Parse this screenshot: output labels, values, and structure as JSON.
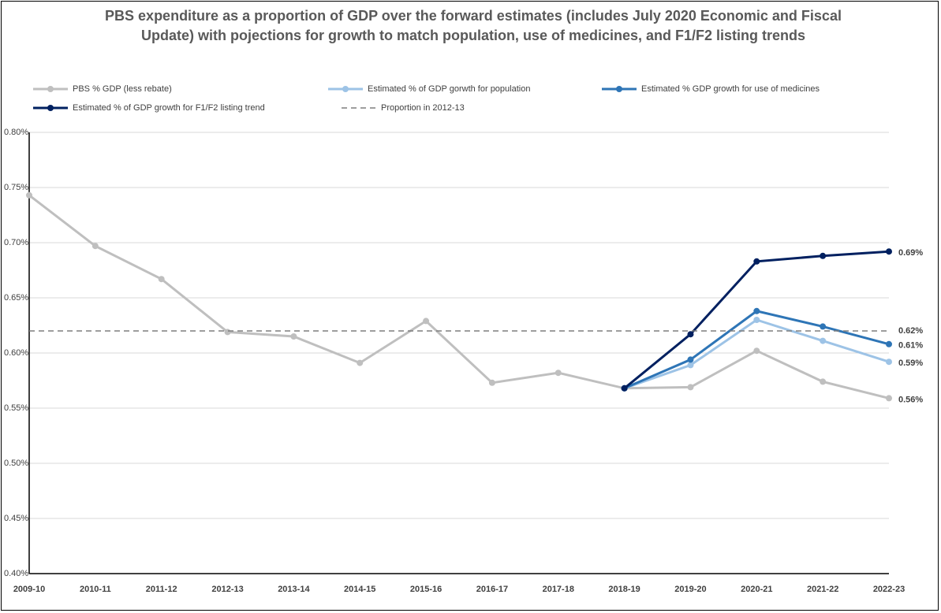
{
  "chart_data": {
    "type": "line",
    "title": "PBS expenditure as a proportion of GDP over the forward estimates (includes July 2020 Economic and Fiscal Update) with pojections for growth to match population, use of medicines, and F1/F2 listing trends",
    "categories": [
      "2009-10",
      "2010-11",
      "2011-12",
      "2012-13",
      "2013-14",
      "2014-15",
      "2015-16",
      "2016-17",
      "2017-18",
      "2018-19",
      "2019-20",
      "2020-21",
      "2021-22",
      "2022-23"
    ],
    "series": [
      {
        "name": "PBS % GDP (less rebate)",
        "color": "#bfbfbf",
        "dashed": false,
        "markers": true,
        "values": [
          0.743,
          0.697,
          0.667,
          0.619,
          0.615,
          0.591,
          0.629,
          0.573,
          0.582,
          0.568,
          0.569,
          0.602,
          0.574,
          0.559
        ],
        "value_labels": [
          null,
          null,
          null,
          null,
          null,
          null,
          null,
          null,
          null,
          null,
          null,
          null,
          null,
          "0.56%"
        ]
      },
      {
        "name": "Estimated % of GDP gorwth for population",
        "color": "#9dc3e6",
        "dashed": false,
        "markers": true,
        "values": [
          null,
          null,
          null,
          null,
          null,
          null,
          null,
          null,
          null,
          0.568,
          0.589,
          0.63,
          0.611,
          0.592
        ],
        "value_labels": [
          null,
          null,
          null,
          null,
          null,
          null,
          null,
          null,
          null,
          null,
          null,
          null,
          null,
          "0.59%"
        ]
      },
      {
        "name": "Estimated % GDP growth for use of medicines",
        "color": "#2e75b6",
        "dashed": false,
        "markers": true,
        "values": [
          null,
          null,
          null,
          null,
          null,
          null,
          null,
          null,
          null,
          0.568,
          0.594,
          0.638,
          0.624,
          0.608
        ],
        "value_labels": [
          null,
          null,
          null,
          null,
          null,
          null,
          null,
          null,
          null,
          null,
          null,
          null,
          null,
          "0.61%"
        ]
      },
      {
        "name": "Estimated % of GDP growth for F1/F2 listing trend",
        "color": "#002060",
        "dashed": false,
        "markers": true,
        "values": [
          null,
          null,
          null,
          null,
          null,
          null,
          null,
          null,
          null,
          0.568,
          0.617,
          0.683,
          0.688,
          0.692
        ],
        "value_labels": [
          null,
          null,
          null,
          null,
          null,
          null,
          null,
          null,
          null,
          null,
          null,
          null,
          null,
          "0.69%"
        ]
      },
      {
        "name": "Proportion in 2012-13",
        "color": "#7f7f7f",
        "dashed": true,
        "markers": false,
        "values": [
          0.62,
          0.62,
          0.62,
          0.62,
          0.62,
          0.62,
          0.62,
          0.62,
          0.62,
          0.62,
          0.62,
          0.62,
          0.62,
          0.62
        ],
        "value_labels": [
          null,
          null,
          null,
          null,
          null,
          null,
          null,
          null,
          null,
          null,
          null,
          null,
          null,
          "0.62%"
        ]
      }
    ],
    "ylim": [
      0.4,
      0.8
    ],
    "yticks": [
      {
        "value": 0.4,
        "label": "0.40%"
      },
      {
        "value": 0.45,
        "label": "0.45%"
      },
      {
        "value": 0.5,
        "label": "0.50%"
      },
      {
        "value": 0.55,
        "label": "0.55%"
      },
      {
        "value": 0.6,
        "label": "0.60%"
      },
      {
        "value": 0.65,
        "label": "0.65%"
      },
      {
        "value": 0.7,
        "label": "0.70%"
      },
      {
        "value": 0.75,
        "label": "0.75%"
      },
      {
        "value": 0.8,
        "label": "0.80%"
      }
    ],
    "grid": true,
    "legend": "top"
  }
}
